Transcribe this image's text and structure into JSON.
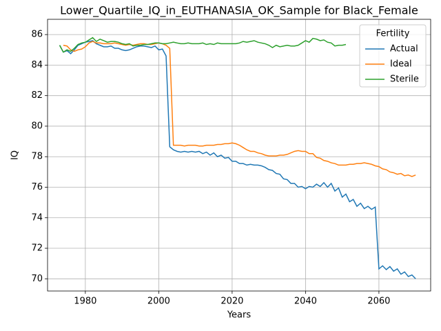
{
  "chart_data": {
    "type": "line",
    "title": "Lower_Quartile_IQ_in_EUTHANASIA_OK_Sample for Black_Female",
    "xlabel": "Years",
    "ylabel": "IQ",
    "legend_title": "Fertility",
    "legend_loc": "upper right",
    "grid": true,
    "xlim": [
      1969.7,
      2074.1
    ],
    "ylim": [
      69.2,
      87.0
    ],
    "xticks": [
      1980,
      2000,
      2020,
      2040,
      2060
    ],
    "yticks": [
      70,
      72,
      74,
      76,
      78,
      80,
      82,
      84,
      86
    ],
    "x": [
      1973,
      1974,
      1975,
      1976,
      1977,
      1978,
      1979,
      1980,
      1981,
      1982,
      1983,
      1984,
      1985,
      1986,
      1987,
      1988,
      1989,
      1990,
      1991,
      1992,
      1993,
      1994,
      1995,
      1996,
      1997,
      1998,
      1999,
      2000,
      2001,
      2002,
      2003,
      2004,
      2005,
      2006,
      2007,
      2008,
      2009,
      2010,
      2011,
      2012,
      2013,
      2014,
      2015,
      2016,
      2017,
      2018,
      2019,
      2020,
      2021,
      2022,
      2023,
      2024,
      2025,
      2026,
      2027,
      2028,
      2029,
      2030,
      2031,
      2032,
      2033,
      2034,
      2035,
      2036,
      2037,
      2038,
      2039,
      2040,
      2041,
      2042,
      2043,
      2044,
      2045,
      2046,
      2047,
      2048,
      2049,
      2050,
      2051,
      2052,
      2053,
      2054,
      2055,
      2056,
      2057,
      2058,
      2059,
      2060,
      2061,
      2062,
      2063,
      2064,
      2065,
      2066,
      2067,
      2068,
      2069,
      2070
    ],
    "series": [
      {
        "name": "Actual",
        "color": "#1f77b4",
        "values": [
          85.3,
          84.85,
          84.95,
          84.75,
          85.0,
          85.3,
          85.4,
          85.5,
          85.55,
          85.6,
          85.4,
          85.3,
          85.2,
          85.2,
          85.25,
          85.1,
          85.1,
          85.0,
          84.95,
          85.0,
          85.1,
          85.2,
          85.25,
          85.25,
          85.2,
          85.15,
          85.25,
          85.0,
          85.05,
          84.6,
          78.65,
          78.45,
          78.35,
          78.3,
          78.35,
          78.3,
          78.35,
          78.3,
          78.35,
          78.2,
          78.3,
          78.1,
          78.25,
          78.0,
          78.1,
          77.9,
          77.95,
          77.7,
          77.7,
          77.55,
          77.55,
          77.45,
          77.5,
          77.45,
          77.45,
          77.4,
          77.3,
          77.15,
          77.1,
          76.9,
          76.85,
          76.55,
          76.5,
          76.25,
          76.25,
          76.0,
          76.05,
          75.9,
          76.05,
          76.0,
          76.2,
          76.05,
          76.3,
          76.0,
          76.25,
          75.75,
          75.95,
          75.35,
          75.55,
          75.05,
          75.2,
          74.75,
          74.95,
          74.6,
          74.75,
          74.55,
          74.7,
          70.65,
          70.85,
          70.6,
          70.8,
          70.5,
          70.65,
          70.3,
          70.45,
          70.15,
          70.25,
          70.0
        ]
      },
      {
        "name": "Ideal",
        "color": "#ff7f0e",
        "values": [
          null,
          85.3,
          85.25,
          85.0,
          84.9,
          85.0,
          85.05,
          85.2,
          85.45,
          85.55,
          85.45,
          85.45,
          85.4,
          85.4,
          85.4,
          85.45,
          85.4,
          85.35,
          85.3,
          85.35,
          85.3,
          85.35,
          85.4,
          85.4,
          85.35,
          85.35,
          85.4,
          85.45,
          85.4,
          85.3,
          85.1,
          78.75,
          78.75,
          78.75,
          78.7,
          78.75,
          78.75,
          78.75,
          78.7,
          78.7,
          78.75,
          78.75,
          78.75,
          78.8,
          78.8,
          78.85,
          78.85,
          78.9,
          78.85,
          78.75,
          78.6,
          78.45,
          78.35,
          78.35,
          78.25,
          78.2,
          78.1,
          78.05,
          78.05,
          78.05,
          78.1,
          78.1,
          78.15,
          78.25,
          78.35,
          78.4,
          78.35,
          78.35,
          78.2,
          78.2,
          77.95,
          77.9,
          77.75,
          77.7,
          77.6,
          77.55,
          77.45,
          77.45,
          77.45,
          77.5,
          77.5,
          77.55,
          77.55,
          77.6,
          77.55,
          77.5,
          77.4,
          77.35,
          77.2,
          77.15,
          77.0,
          76.95,
          76.85,
          76.9,
          76.75,
          76.8,
          76.7,
          76.8
        ]
      },
      {
        "name": "Sterile",
        "color": "#2ca02c",
        "values": [
          85.3,
          84.85,
          85.0,
          84.9,
          85.1,
          85.35,
          85.45,
          85.5,
          85.65,
          85.8,
          85.55,
          85.7,
          85.6,
          85.5,
          85.55,
          85.55,
          85.5,
          85.4,
          85.35,
          85.4,
          85.25,
          85.3,
          85.3,
          85.35,
          85.35,
          85.4,
          85.45,
          85.45,
          85.4,
          85.4,
          85.45,
          85.5,
          85.45,
          85.4,
          85.4,
          85.45,
          85.4,
          85.4,
          85.4,
          85.45,
          85.35,
          85.4,
          85.35,
          85.45,
          85.4,
          85.4,
          85.4,
          85.4,
          85.4,
          85.45,
          85.55,
          85.5,
          85.55,
          85.6,
          85.5,
          85.45,
          85.4,
          85.3,
          85.15,
          85.3,
          85.2,
          85.25,
          85.3,
          85.25,
          85.25,
          85.3,
          85.45,
          85.6,
          85.5,
          85.75,
          85.7,
          85.6,
          85.65,
          85.5,
          85.45,
          85.25,
          85.3,
          85.3,
          85.35,
          null,
          null,
          null,
          null,
          null,
          null,
          null,
          null,
          null,
          null,
          null,
          null,
          null,
          null,
          null,
          null,
          null,
          null,
          null
        ]
      }
    ]
  }
}
